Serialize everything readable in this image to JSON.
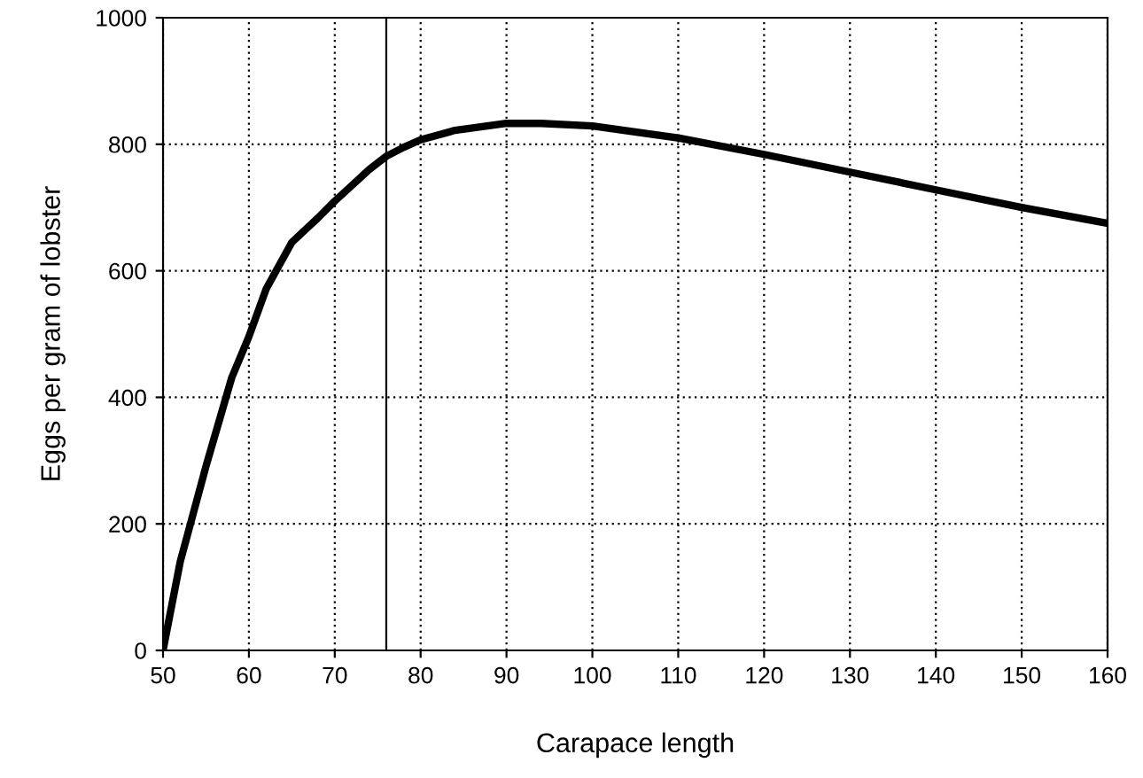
{
  "chart_data": {
    "type": "line",
    "xlabel": "Carapace length",
    "ylabel": "Eggs per gram of lobster",
    "x": [
      50,
      52,
      55,
      58,
      60,
      62,
      65,
      68,
      70,
      72,
      74,
      76,
      78,
      80,
      84,
      90,
      94,
      100,
      110,
      120,
      130,
      140,
      150,
      160
    ],
    "series": [
      {
        "color": "#000000",
        "values": [
          0,
          140,
          291,
          431,
          496,
          571,
          645,
          683,
          710,
          735,
          760,
          781,
          795,
          807,
          822,
          833,
          833,
          829,
          810,
          784,
          756,
          728,
          700,
          675
        ]
      }
    ],
    "xlim": [
      50,
      160
    ],
    "ylim": [
      0,
      1000
    ],
    "xticks": [
      50,
      60,
      70,
      80,
      90,
      100,
      110,
      120,
      130,
      140,
      150,
      160
    ],
    "yticks": [
      0,
      200,
      400,
      600,
      800,
      1000
    ],
    "grid": true,
    "marker": "none",
    "line_style": "solid",
    "ref_lines": [
      {
        "axis": "x",
        "value": 76,
        "color": "#000000"
      }
    ]
  }
}
